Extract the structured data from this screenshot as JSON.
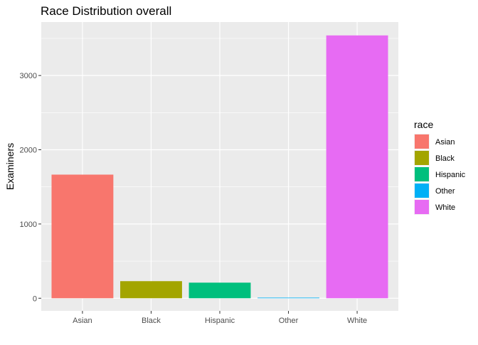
{
  "chart_data": {
    "type": "bar",
    "title": "Race Distribution overall",
    "xlabel": "",
    "ylabel": "Examiners",
    "categories": [
      "Asian",
      "Black",
      "Hispanic",
      "Other",
      "White"
    ],
    "values": [
      1665,
      230,
      210,
      8,
      3540
    ],
    "colors": [
      "#F8766D",
      "#A3A500",
      "#00BF7D",
      "#00B0F6",
      "#E76BF3"
    ],
    "ylim": [
      -170,
      3720
    ],
    "yticks": [
      0,
      1000,
      2000,
      3000
    ],
    "ytick_labels": [
      "0",
      "1000",
      "2000",
      "3000"
    ],
    "grid": true,
    "panel_background": "#EBEBEB",
    "legend": {
      "title": "race",
      "placement": "right",
      "entries": [
        "Asian",
        "Black",
        "Hispanic",
        "Other",
        "White"
      ]
    }
  }
}
